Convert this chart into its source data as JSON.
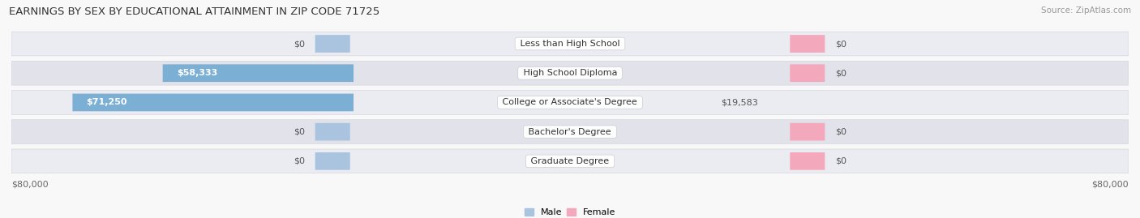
{
  "title": "EARNINGS BY SEX BY EDUCATIONAL ATTAINMENT IN ZIP CODE 71725",
  "source": "Source: ZipAtlas.com",
  "categories": [
    "Less than High School",
    "High School Diploma",
    "College or Associate's Degree",
    "Bachelor's Degree",
    "Graduate Degree"
  ],
  "male_values": [
    0,
    58333,
    71250,
    0,
    0
  ],
  "female_values": [
    0,
    0,
    19583,
    0,
    0
  ],
  "male_labels": [
    "$0",
    "$58,333",
    "$71,250",
    "$0",
    "$0"
  ],
  "female_labels": [
    "$0",
    "$0",
    "$19,583",
    "$0",
    "$0"
  ],
  "male_color_full": "#7bafd4",
  "female_color_full": "#e8647a",
  "male_color_stub": "#aac4e0",
  "female_color_stub": "#f4a8bb",
  "row_bg_color_odd": "#ebebf2",
  "row_bg_color_even": "#e2e2ea",
  "max_value": 80000,
  "stub_value": 5000,
  "axis_label_left": "$80,000",
  "axis_label_right": "$80,000",
  "title_fontsize": 9.5,
  "source_fontsize": 7.5,
  "label_fontsize": 8,
  "cat_fontsize": 8,
  "background_color": "#f8f8f8"
}
